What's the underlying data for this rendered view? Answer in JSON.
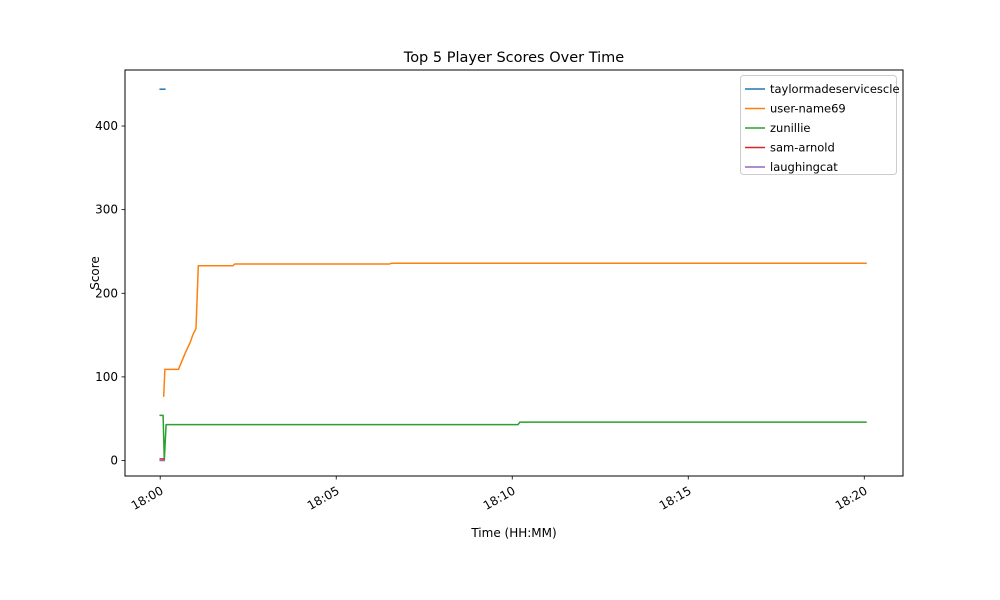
{
  "chart_data": {
    "type": "line",
    "title": "Top 5 Player Scores Over Time",
    "xlabel": "Time (HH:MM)",
    "ylabel": "Score",
    "grid": false,
    "legend": {
      "position": "upper-right",
      "border_color": "#cccccc",
      "background": "#ffffff"
    },
    "x_axis": {
      "unit": "seconds after 18:00",
      "lim": [
        -60,
        1266
      ],
      "tick_rotation_deg": 30,
      "ticks": [
        {
          "t": 0,
          "label": "18:00"
        },
        {
          "t": 300,
          "label": "18:05"
        },
        {
          "t": 600,
          "label": "18:10"
        },
        {
          "t": 900,
          "label": "18:15"
        },
        {
          "t": 1200,
          "label": "18:20"
        }
      ]
    },
    "y_axis": {
      "lim": [
        -18.5,
        467
      ],
      "ticks": [
        {
          "v": 0,
          "label": "0"
        },
        {
          "v": 100,
          "label": "100"
        },
        {
          "v": 200,
          "label": "200"
        },
        {
          "v": 300,
          "label": "300"
        },
        {
          "v": 400,
          "label": "400"
        }
      ]
    },
    "series": [
      {
        "name": "taylormadeservicescle",
        "color": "#1f77b4",
        "points": [
          [
            0,
            444
          ],
          [
            8,
            444
          ]
        ]
      },
      {
        "name": "user-name69",
        "color": "#ff7f0e",
        "points": [
          [
            6,
            77
          ],
          [
            8,
            109
          ],
          [
            31,
            109
          ],
          [
            43,
            129
          ],
          [
            51,
            141
          ],
          [
            56,
            151
          ],
          [
            61,
            158
          ],
          [
            65,
            233
          ],
          [
            124,
            233
          ],
          [
            127,
            235
          ],
          [
            391,
            235
          ],
          [
            394,
            236
          ],
          [
            1203,
            236
          ]
        ]
      },
      {
        "name": "zunillie",
        "color": "#2ca02c",
        "points": [
          [
            0,
            54
          ],
          [
            5,
            54
          ],
          [
            7,
            0
          ],
          [
            10,
            43
          ],
          [
            610,
            43
          ],
          [
            613,
            46
          ],
          [
            1203,
            46
          ]
        ]
      },
      {
        "name": "sam-arnold",
        "color": "#d62728",
        "points": [
          [
            0,
            2
          ],
          [
            6,
            2
          ]
        ]
      },
      {
        "name": "laughingcat",
        "color": "#9467bd",
        "points": [
          [
            0,
            0
          ],
          [
            6,
            0
          ]
        ]
      }
    ]
  }
}
